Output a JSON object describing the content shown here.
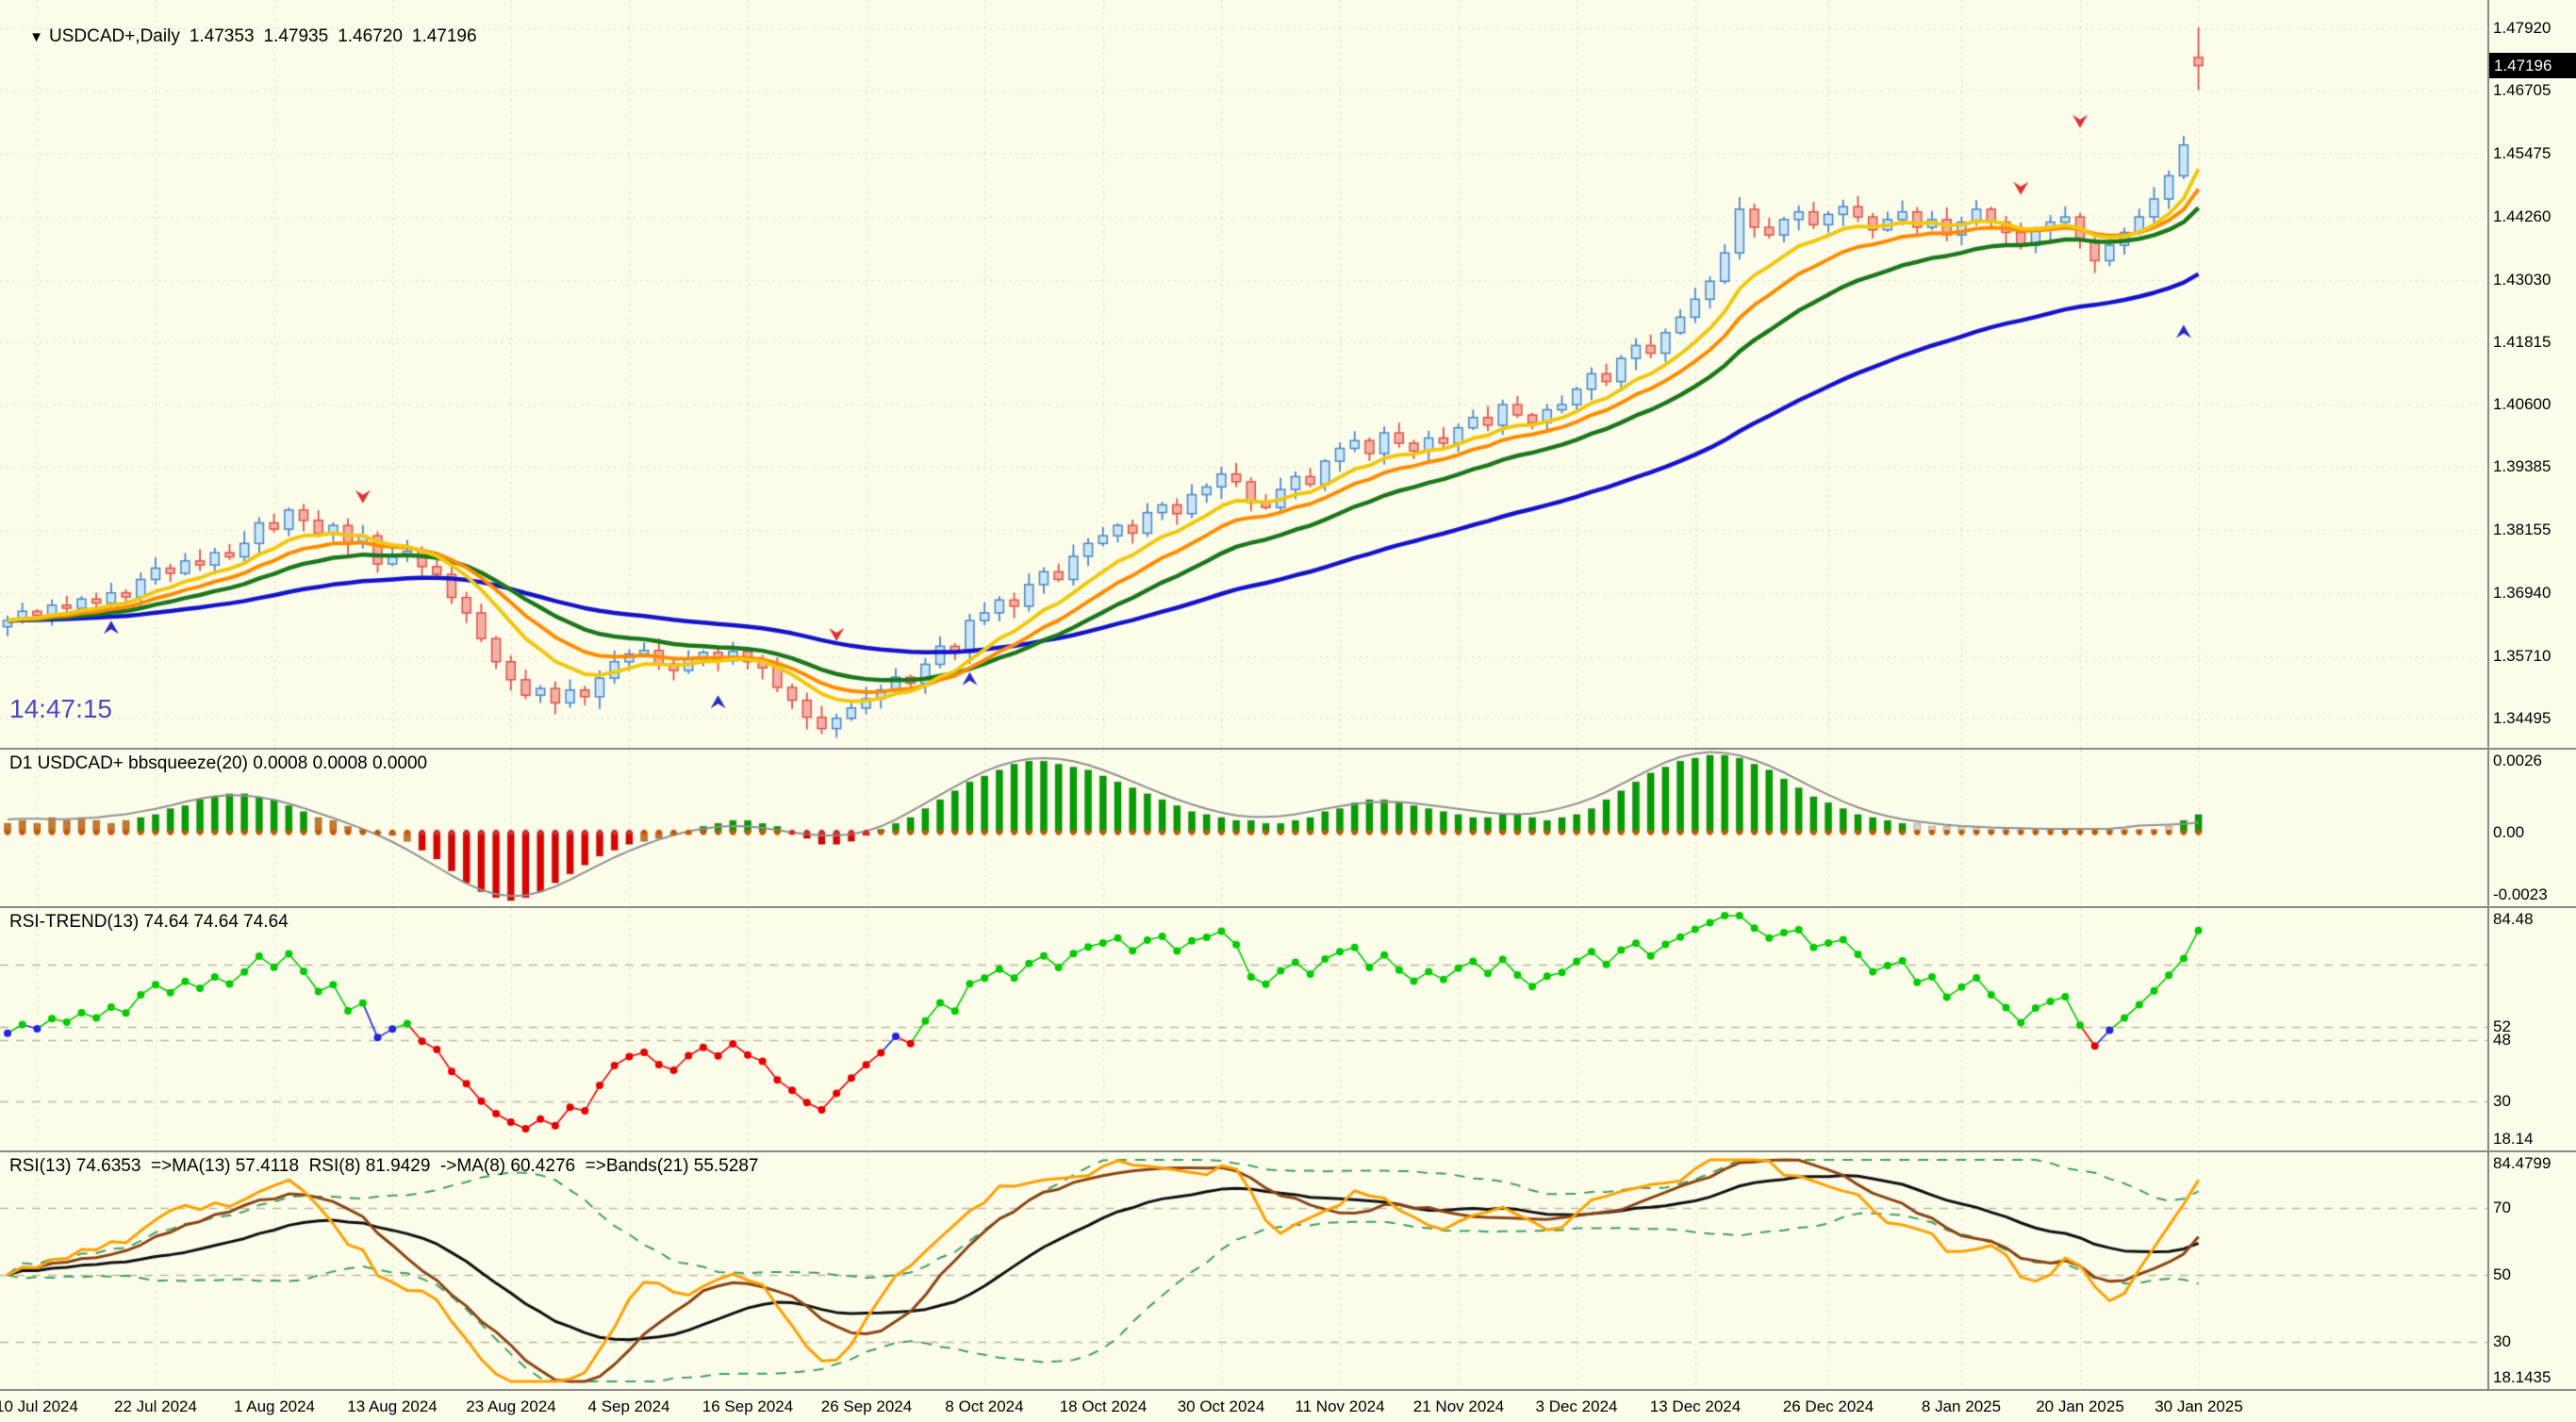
{
  "header": {
    "collapse_icon": "▼",
    "symbol_period": "USDCAD+,Daily",
    "open": "1.47353",
    "high": "1.47935",
    "low": "1.46720",
    "close": "1.47196"
  },
  "main_panel": {
    "clock": "14:47:15"
  },
  "price_scale": {
    "badge": "1.47196",
    "labels": [
      "1.47920",
      "1.46705",
      "1.45475",
      "1.44260",
      "1.43030",
      "1.41815",
      "1.40600",
      "1.39385",
      "1.38155",
      "1.36940",
      "1.35710",
      "1.34495"
    ]
  },
  "panels": {
    "squeeze": {
      "title": "D1 USDCAD+ bbsqueeze(20) 0.0008 0.0008 0.0000",
      "scale_labels": [
        "0.0026",
        "0.00",
        "-0.0023"
      ],
      "scale_values": [
        0.0026,
        0,
        -0.0023
      ]
    },
    "rsi_trend": {
      "title": "RSI-TREND(13) 74.64 74.64 74.64",
      "scale_labels": [
        "84.48",
        "52",
        "48",
        "30",
        "18.14"
      ],
      "scale_values": [
        84.48,
        52,
        48,
        30,
        18.14
      ],
      "dashed_levels": [
        70,
        52,
        48,
        30
      ]
    },
    "rsi": {
      "title": "RSI(13) 74.6353  =>MA(13) 57.4118  RSI(8) 81.9429  ->MA(8) 60.4276  =>Bands(21) 55.5287",
      "scale_labels": [
        "84.4799",
        "70",
        "50",
        "30",
        "18.1435"
      ],
      "scale_values": [
        84.4799,
        70,
        50,
        30,
        18.1435
      ],
      "dashed_levels": [
        70,
        50,
        30
      ]
    }
  },
  "colors": {
    "background": "#FCFCEA",
    "grid": "#ABAB96",
    "dashed_level": "#A8A88E",
    "panel_border": "#8A8A8A",
    "candle_up_fill": "#CBE6F6",
    "candle_up_border": "#4A86C8",
    "candle_down_fill": "#F4B0A6",
    "candle_down_border": "#DE5348",
    "ma_yellow": "#F0C810",
    "ma_orange": "#FF8C00",
    "ma_green": "#1C781C",
    "ma_blue": "#1414CC",
    "hist_green": "#00A000",
    "hist_red": "#E00000",
    "hist_orange": "#C87828",
    "hist_light": "#D4D4C6",
    "hist_dot": "#CC5500",
    "hist_dot_red": "#D03030",
    "envelope": "#909090",
    "rsi_dot_green": "#00CC00",
    "rsi_dot_red": "#E80000",
    "rsi_dot_blue": "#2424E0",
    "rsi_orange": "#FFA000",
    "rsi_black": "#101010",
    "rsi_brown": "#8B4513",
    "rsi_band": "#3FA060",
    "marker_up": "#2828C8",
    "marker_down": "#E03030",
    "badge_bg": "#000000",
    "badge_fg": "#FFFFFF",
    "clock": "#4A4AC2"
  },
  "chart_data": {
    "type": "candlestick",
    "symbol": "USDCAD+",
    "timeframe": "Daily",
    "title": "USDCAD+,Daily 1.47353 1.47935 1.46720 1.47196",
    "last_ohlc": {
      "open": 1.47353,
      "high": 1.47935,
      "low": 1.4672,
      "close": 1.47196
    },
    "price_axis": {
      "min": 1.34495,
      "max": 1.4792,
      "grid": true
    },
    "time_axis": {
      "tick_labels": [
        "10 Jul 2024",
        "22 Jul 2024",
        "1 Aug 2024",
        "13 Aug 2024",
        "23 Aug 2024",
        "4 Sep 2024",
        "16 Sep 2024",
        "26 Sep 2024",
        "8 Oct 2024",
        "18 Oct 2024",
        "30 Oct 2024",
        "11 Nov 2024",
        "21 Nov 2024",
        "3 Dec 2024",
        "13 Dec 2024",
        "26 Dec 2024",
        "8 Jan 2025",
        "20 Jan 2025",
        "30 Jan 2025"
      ],
      "tick_candle_indices": [
        2,
        10,
        18,
        26,
        34,
        42,
        50,
        58,
        66,
        74,
        82,
        90,
        98,
        106,
        114,
        123,
        132,
        140,
        148
      ]
    },
    "candles": {
      "closes": [
        1.364,
        1.3658,
        1.365,
        1.367,
        1.3664,
        1.3682,
        1.3674,
        1.3694,
        1.3686,
        1.372,
        1.3742,
        1.3732,
        1.3756,
        1.3748,
        1.3772,
        1.3764,
        1.379,
        1.383,
        1.3818,
        1.3855,
        1.3835,
        1.381,
        1.3825,
        1.379,
        1.3805,
        1.375,
        1.3765,
        1.3775,
        1.3745,
        1.373,
        1.3685,
        1.3655,
        1.3605,
        1.356,
        1.3525,
        1.3495,
        1.3508,
        1.348,
        1.3505,
        1.3492,
        1.3528,
        1.356,
        1.3575,
        1.3582,
        1.3556,
        1.3543,
        1.3565,
        1.3578,
        1.3562,
        1.358,
        1.356,
        1.3548,
        1.351,
        1.3485,
        1.3452,
        1.343,
        1.345,
        1.347,
        1.3488,
        1.3505,
        1.353,
        1.3518,
        1.3555,
        1.359,
        1.3578,
        1.364,
        1.3655,
        1.368,
        1.3668,
        1.371,
        1.3735,
        1.372,
        1.3765,
        1.379,
        1.3805,
        1.3825,
        1.381,
        1.385,
        1.3865,
        1.3848,
        1.3885,
        1.39,
        1.3925,
        1.391,
        1.387,
        1.386,
        1.3895,
        1.392,
        1.3905,
        1.395,
        1.3975,
        1.399,
        1.3965,
        1.4005,
        1.3985,
        1.397,
        1.3995,
        1.3985,
        1.4015,
        1.4035,
        1.402,
        1.406,
        1.404,
        1.4025,
        1.405,
        1.406,
        1.409,
        1.412,
        1.4105,
        1.415,
        1.4175,
        1.416,
        1.42,
        1.423,
        1.4265,
        1.43,
        1.4355,
        1.444,
        1.4405,
        1.439,
        1.442,
        1.4435,
        1.441,
        1.443,
        1.4445,
        1.4425,
        1.44,
        1.442,
        1.4435,
        1.4405,
        1.442,
        1.439,
        1.4415,
        1.444,
        1.4415,
        1.4395,
        1.437,
        1.44,
        1.4415,
        1.4425,
        1.438,
        1.434,
        1.437,
        1.4395,
        1.4425,
        1.446,
        1.4505,
        1.4565,
        1.47196
      ]
    },
    "moving_averages": [
      {
        "name": "fast",
        "period": 8,
        "color_key": "ma_yellow"
      },
      {
        "name": "medium",
        "period": 13,
        "color_key": "ma_orange"
      },
      {
        "name": "slow",
        "period": 21,
        "color_key": "ma_green"
      },
      {
        "name": "slowest",
        "period": 50,
        "color_key": "ma_blue"
      }
    ],
    "squeeze_histogram": {
      "unit": 0.0001,
      "values": [
        3,
        4,
        3,
        5,
        4,
        5,
        4,
        3,
        4,
        5,
        6,
        8,
        9,
        11,
        12,
        13,
        13,
        12,
        11,
        9,
        7,
        5,
        4,
        2,
        1,
        0,
        -1,
        -3,
        -6,
        -9,
        -13,
        -17,
        -20,
        -22,
        -23,
        -22,
        -20,
        -17,
        -14,
        -11,
        -8,
        -6,
        -4,
        -3,
        -2,
        -1,
        0,
        2,
        3,
        4,
        4,
        3,
        2,
        0,
        -2,
        -4,
        -4,
        -3,
        -1,
        1,
        3,
        5,
        8,
        11,
        14,
        17,
        19,
        21,
        23,
        24,
        24,
        23,
        22,
        21,
        19,
        17,
        15,
        13,
        11,
        9,
        7,
        6,
        5,
        4,
        4,
        3,
        3,
        4,
        5,
        7,
        8,
        10,
        11,
        11,
        10,
        9,
        8,
        7,
        6,
        5,
        5,
        6,
        6,
        5,
        4,
        5,
        6,
        8,
        11,
        14,
        17,
        20,
        22,
        24,
        25,
        26,
        26,
        25,
        23,
        21,
        18,
        15,
        12,
        10,
        8,
        6,
        5,
        4,
        3,
        3,
        2,
        2,
        2,
        2,
        1,
        1,
        1,
        1,
        1,
        1,
        1,
        1,
        1,
        1,
        1,
        1,
        2,
        4,
        6
      ],
      "bar_colors": "oooooooooggggggggggggooooooorrrrrrrrrrrrrrrooooggggggrrrrrrggggggggggggggggggggggggggggggggggggggggggggggggggggggggggggggggggggggllllllllllllllllllgg",
      "range": [
        -0.0023,
        0.0026
      ]
    },
    "rsi_trend": {
      "period": 13,
      "current": 74.64,
      "green_above": 52,
      "red_below": 48,
      "range": [
        18.14,
        84.48
      ]
    },
    "rsi_panel": {
      "rsi13": 74.6353,
      "ma13": 57.4118,
      "rsi8": 81.9429,
      "ma8": 60.4276,
      "bands21": 55.5287,
      "range": [
        18.1435,
        84.4799
      ]
    },
    "markers": [
      {
        "index": 7,
        "price": 1.364,
        "dir": "up"
      },
      {
        "index": 24,
        "price": 1.3868,
        "dir": "down"
      },
      {
        "index": 48,
        "price": 1.3495,
        "dir": "up"
      },
      {
        "index": 56,
        "price": 1.36,
        "dir": "down"
      },
      {
        "index": 65,
        "price": 1.354,
        "dir": "up"
      },
      {
        "index": 136,
        "price": 1.4468,
        "dir": "down"
      },
      {
        "index": 140,
        "price": 1.4598,
        "dir": "down"
      },
      {
        "index": 147,
        "price": 1.4215,
        "dir": "up"
      }
    ]
  }
}
